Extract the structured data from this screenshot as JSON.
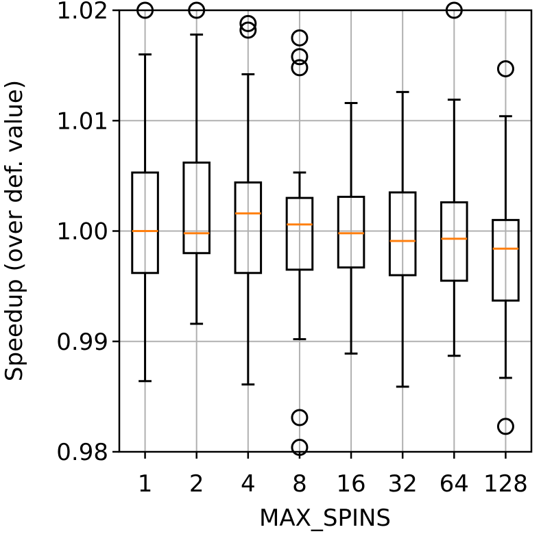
{
  "chart_data": {
    "type": "box",
    "xlabel": "MAX_SPINS",
    "ylabel": "Speedup (over def. value)",
    "categories": [
      "1",
      "2",
      "4",
      "8",
      "16",
      "32",
      "64",
      "128"
    ],
    "ylim": [
      0.98,
      1.02
    ],
    "yticks": [
      0.98,
      0.99,
      1.0,
      1.01,
      1.02
    ],
    "ytick_labels": [
      "0.98",
      "0.99",
      "1.00",
      "1.01",
      "1.02"
    ],
    "grid": true,
    "boxes": [
      {
        "category": "1",
        "whisker_low": 0.9864,
        "q1": 0.9962,
        "median": 1.0,
        "q3": 1.0053,
        "whisker_high": 1.016,
        "outliers": [
          1.02
        ]
      },
      {
        "category": "2",
        "whisker_low": 0.9916,
        "q1": 0.998,
        "median": 0.9998,
        "q3": 1.0062,
        "whisker_high": 1.0178,
        "outliers": [
          1.02
        ]
      },
      {
        "category": "4",
        "whisker_low": 0.9861,
        "q1": 0.9962,
        "median": 1.0016,
        "q3": 1.0044,
        "whisker_high": 1.0142,
        "outliers": [
          1.0182,
          1.0188
        ]
      },
      {
        "category": "8",
        "whisker_low": 0.9902,
        "q1": 0.9965,
        "median": 1.0006,
        "q3": 1.003,
        "whisker_high": 1.0053,
        "outliers": [
          0.9804,
          0.9831,
          1.0148,
          1.0158,
          1.0175
        ]
      },
      {
        "category": "16",
        "whisker_low": 0.9889,
        "q1": 0.9967,
        "median": 0.9998,
        "q3": 1.0031,
        "whisker_high": 1.0116,
        "outliers": []
      },
      {
        "category": "32",
        "whisker_low": 0.9859,
        "q1": 0.996,
        "median": 0.9991,
        "q3": 1.0035,
        "whisker_high": 1.0126,
        "outliers": []
      },
      {
        "category": "64",
        "whisker_low": 0.9887,
        "q1": 0.9955,
        "median": 0.9993,
        "q3": 1.0026,
        "whisker_high": 1.0119,
        "outliers": [
          1.02
        ]
      },
      {
        "category": "128",
        "whisker_low": 0.9867,
        "q1": 0.9937,
        "median": 0.9984,
        "q3": 1.001,
        "whisker_high": 1.0104,
        "outliers": [
          0.9823,
          1.0147
        ]
      }
    ],
    "colors": {
      "box": "#000000",
      "median": "#ff7f0e",
      "grid": "#b0b0b0"
    }
  }
}
